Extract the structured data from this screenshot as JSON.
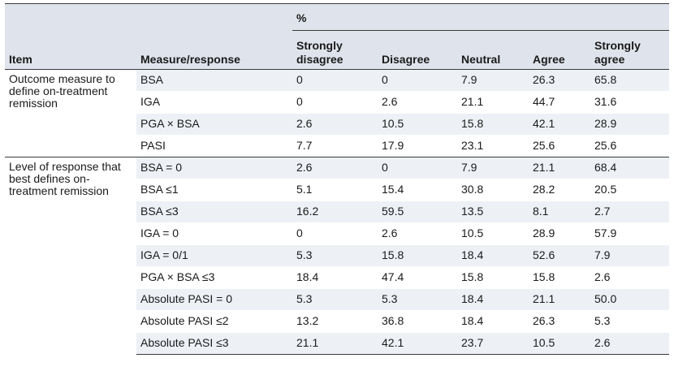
{
  "table": {
    "header": {
      "percent_label": "%",
      "item": "Item",
      "measure": "Measure/response",
      "strongly_disagree": "Strongly disagree",
      "disagree": "Disagree",
      "neutral": "Neutral",
      "agree": "Agree",
      "strongly_agree": "Strongly agree"
    },
    "groups": [
      {
        "item": "Outcome measure to define on-treatment remission",
        "rows": [
          {
            "measure": "BSA",
            "sd": "0",
            "d": "0",
            "n": "7.9",
            "a": "26.3",
            "sa": "65.8"
          },
          {
            "measure": "IGA",
            "sd": "0",
            "d": "2.6",
            "n": "21.1",
            "a": "44.7",
            "sa": "31.6"
          },
          {
            "measure": "PGA × BSA",
            "sd": "2.6",
            "d": "10.5",
            "n": "15.8",
            "a": "42.1",
            "sa": "28.9"
          },
          {
            "measure": "PASI",
            "sd": "7.7",
            "d": "17.9",
            "n": "23.1",
            "a": "25.6",
            "sa": "25.6"
          }
        ]
      },
      {
        "item": "Level of response that best defines on-treatment remission",
        "rows": [
          {
            "measure": "BSA = 0",
            "sd": "2.6",
            "d": "0",
            "n": "7.9",
            "a": "21.1",
            "sa": "68.4"
          },
          {
            "measure": "BSA ≤1",
            "sd": "5.1",
            "d": "15.4",
            "n": "30.8",
            "a": "28.2",
            "sa": "20.5"
          },
          {
            "measure": "BSA ≤3",
            "sd": "16.2",
            "d": "59.5",
            "n": "13.5",
            "a": "8.1",
            "sa": "2.7"
          },
          {
            "measure": "IGA = 0",
            "sd": "0",
            "d": "2.6",
            "n": "10.5",
            "a": "28.9",
            "sa": "57.9"
          },
          {
            "measure": "IGA = 0/1",
            "sd": "5.3",
            "d": "15.8",
            "n": "18.4",
            "a": "52.6",
            "sa": "7.9"
          },
          {
            "measure": "PGA × BSA ≤3",
            "sd": "18.4",
            "d": "47.4",
            "n": "15.8",
            "a": "15.8",
            "sa": "2.6"
          },
          {
            "measure": "Absolute PASI = 0",
            "sd": "5.3",
            "d": "5.3",
            "n": "18.4",
            "a": "21.1",
            "sa": "50.0"
          },
          {
            "measure": "Absolute PASI ≤2",
            "sd": "13.2",
            "d": "36.8",
            "n": "18.4",
            "a": "26.3",
            "sa": "5.3"
          },
          {
            "measure": "Absolute PASI ≤3",
            "sd": "21.1",
            "d": "42.1",
            "n": "23.7",
            "a": "10.5",
            "sa": "2.6"
          }
        ]
      }
    ]
  }
}
